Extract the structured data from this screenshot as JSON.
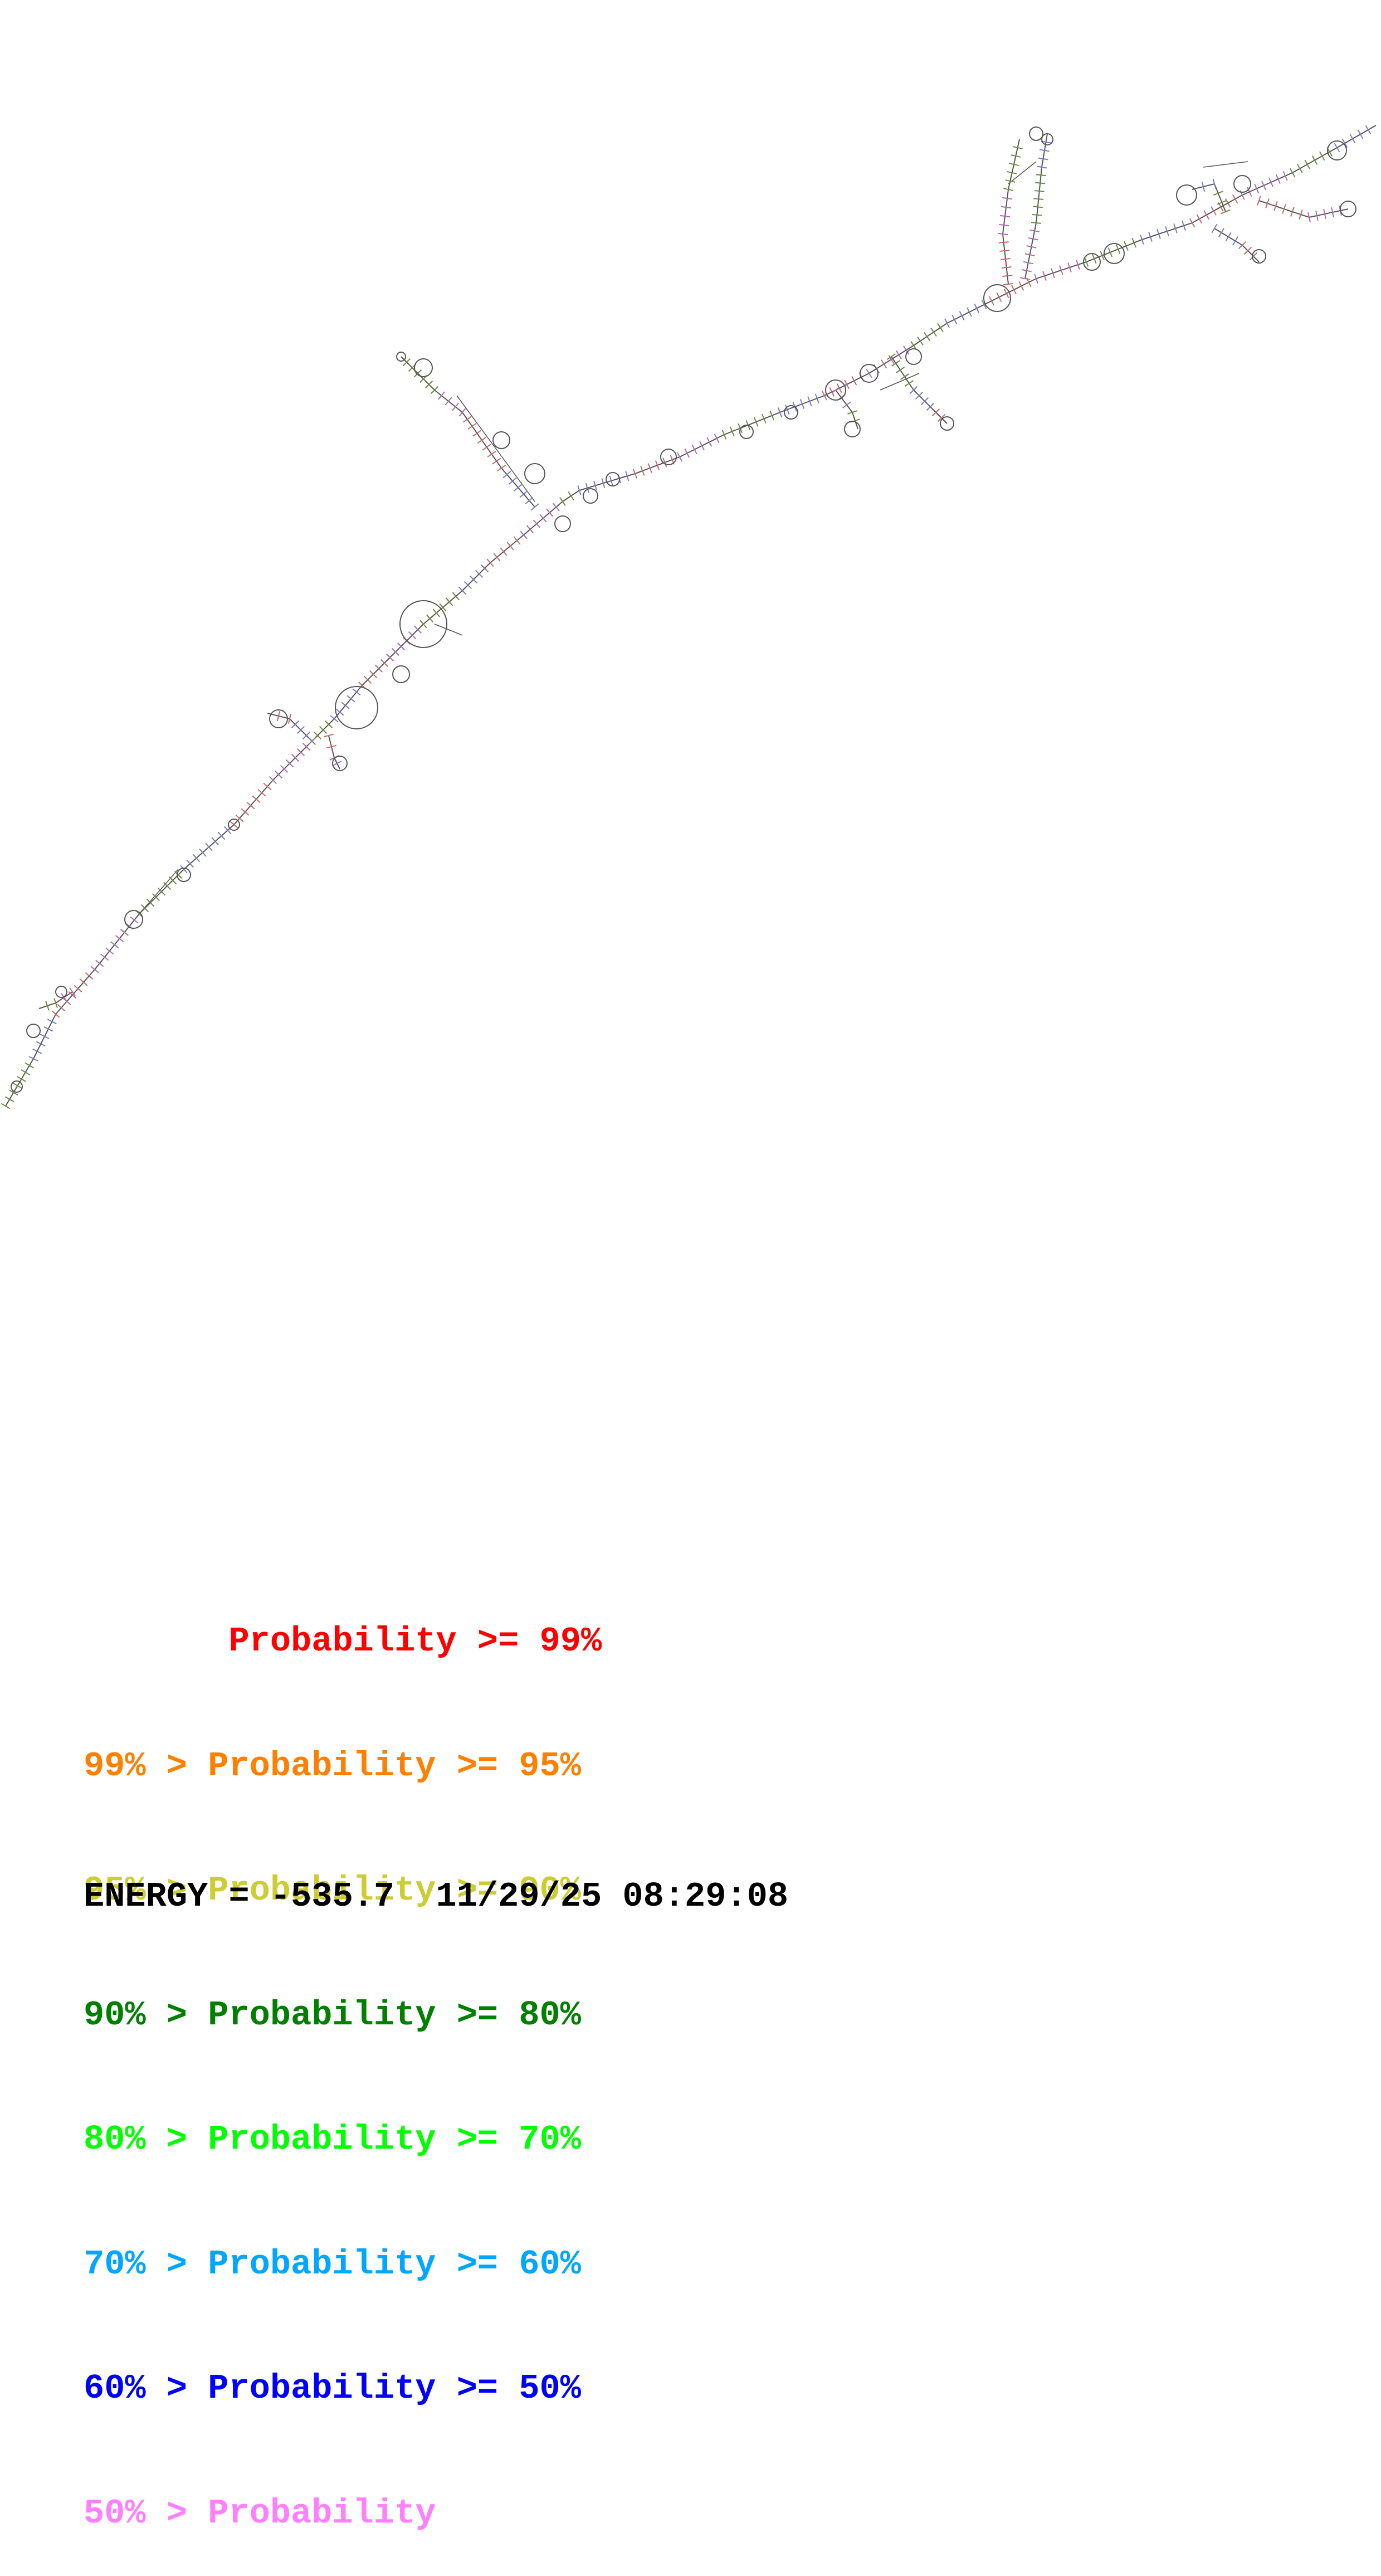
{
  "legend": [
    {
      "text": "       Probability >= 99%",
      "color": "#ff0000"
    },
    {
      "text": "99% > Probability >= 95%",
      "color": "#ff7f00"
    },
    {
      "text": "95% > Probability >= 90%",
      "color": "#cccc33"
    },
    {
      "text": "90% > Probability >= 80%",
      "color": "#007f00"
    },
    {
      "text": "80% > Probability >= 70%",
      "color": "#00ff00"
    },
    {
      "text": "70% > Probability >= 60%",
      "color": "#00a6ff"
    },
    {
      "text": "60% > Probability >= 50%",
      "color": "#0000ff"
    },
    {
      "text": "50% > Probability",
      "color": "#ff80ff"
    }
  ],
  "footer": {
    "energy_label": "ENERGY = -535.7",
    "timestamp": "11/29/25 08:29:08"
  },
  "diagram": {
    "description": "rna-secondary-structure",
    "colors": {
      "backbone": "#555555",
      "stem_primary": "#6b8f3a",
      "stem_alt1": "#7a7acc",
      "stem_alt2": "#c56b6b",
      "stem_alt3": "#b06bb0"
    }
  }
}
